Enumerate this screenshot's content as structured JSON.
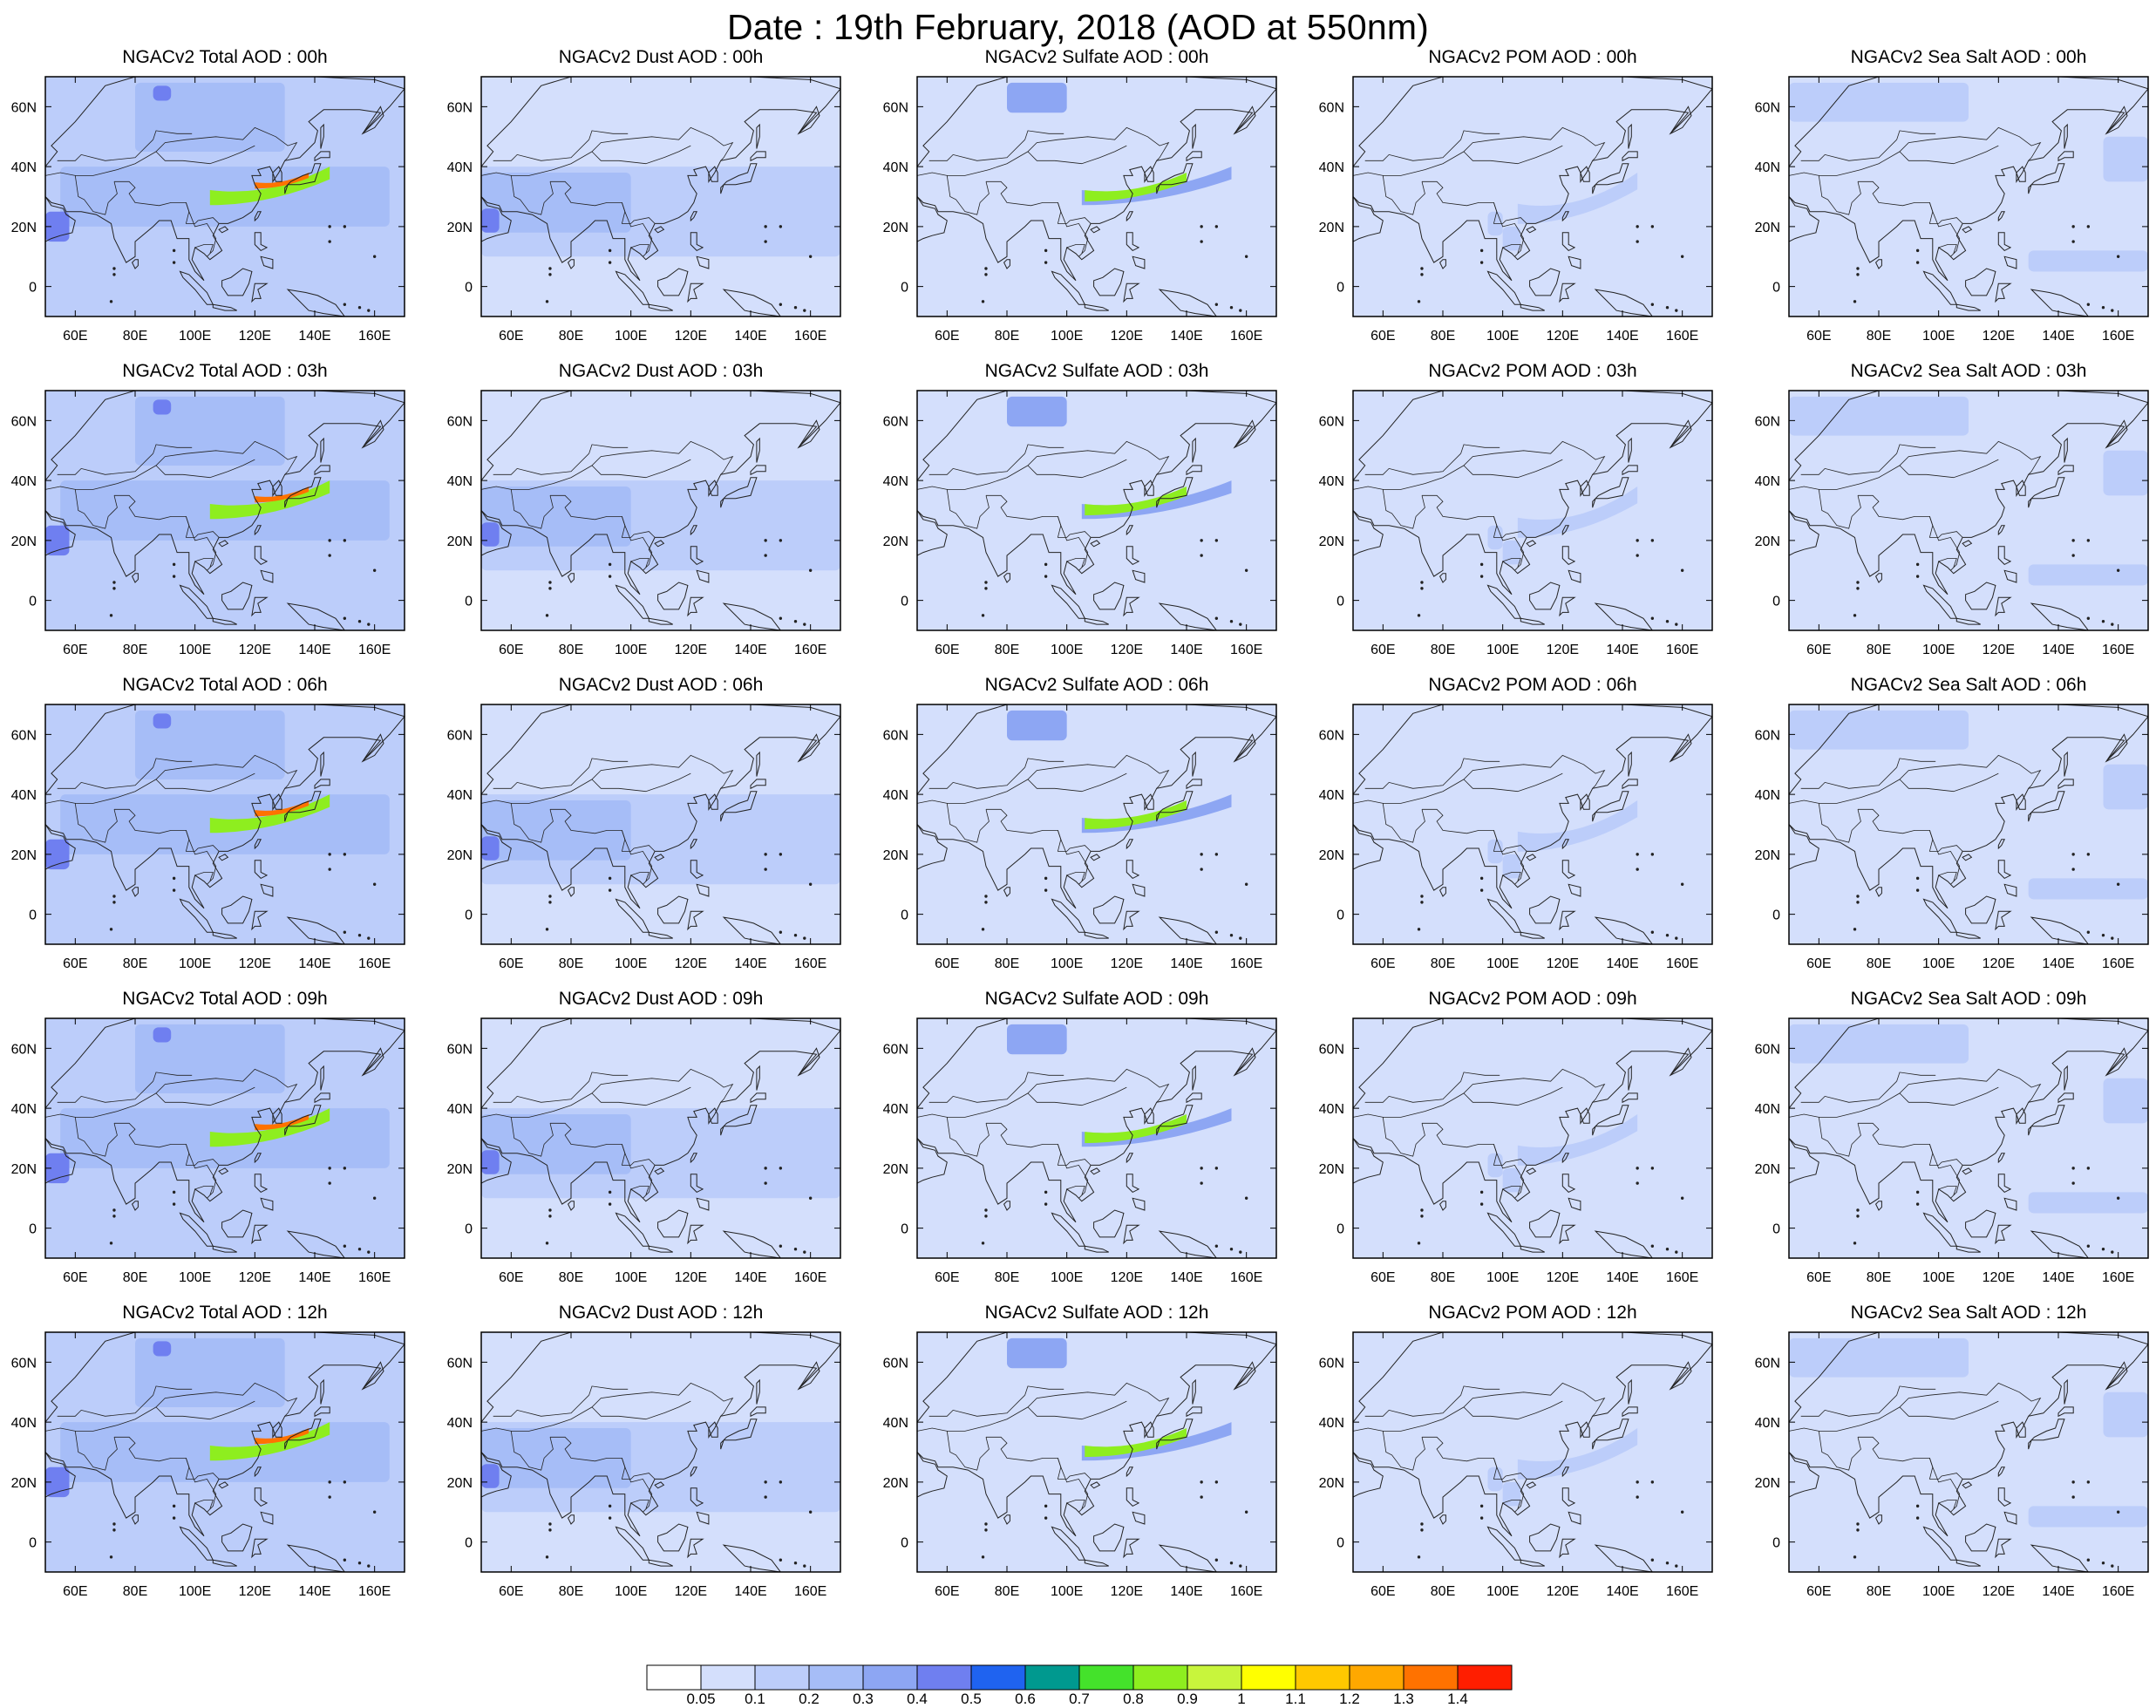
{
  "title": "Date : 19th February, 2018 (AOD at 550nm)",
  "row_hours": [
    "00h",
    "03h",
    "06h",
    "09h",
    "12h"
  ],
  "columns": [
    "total",
    "dust",
    "sulfate",
    "pom",
    "seasalt"
  ],
  "panel_titles": [
    [
      "NGACv2 Total AOD : 00h",
      "NGACv2 Dust AOD : 00h",
      "NGACv2 Sulfate AOD : 00h",
      "NGACv2 POM AOD : 00h",
      "NGACv2 Sea Salt AOD : 00h"
    ],
    [
      "NGACv2 Total AOD : 03h",
      "NGACv2 Dust AOD : 03h",
      "NGACv2 Sulfate AOD : 03h",
      "NGACv2 POM AOD : 03h",
      "NGACv2 Sea Salt AOD : 03h"
    ],
    [
      "NGACv2 Total AOD : 06h",
      "NGACv2 Dust AOD : 06h",
      "NGACv2 Sulfate AOD : 06h",
      "NGACv2 POM AOD : 06h",
      "NGACv2 Sea Salt AOD : 06h"
    ],
    [
      "NGACv2 Total AOD : 09h",
      "NGACv2 Dust AOD : 09h",
      "NGACv2 Sulfate AOD : 09h",
      "NGACv2 POM AOD : 09h",
      "NGACv2 Sea Salt  AOD : 09h"
    ],
    [
      "NGACv2 Total AOD  : 12h",
      "NGACv2 Dust AOD : 12h",
      "NGACv2 Sulfate AOD : 12h",
      "NGACv2 POM  AOD : 12h",
      "NGACv2 Sea Salt  AOD : 12h"
    ]
  ],
  "map_extent": {
    "lon_min": 50,
    "lon_max": 170,
    "lat_min": -10,
    "lat_max": 70
  },
  "lon_ticks": [
    {
      "lon": 60,
      "label": "60E"
    },
    {
      "lon": 80,
      "label": "80E"
    },
    {
      "lon": 100,
      "label": "100E"
    },
    {
      "lon": 120,
      "label": "120E"
    },
    {
      "lon": 140,
      "label": "140E"
    },
    {
      "lon": 160,
      "label": "160E"
    }
  ],
  "lat_ticks": [
    {
      "lat": 0,
      "label": "0"
    },
    {
      "lat": 20,
      "label": "20N"
    },
    {
      "lat": 40,
      "label": "40N"
    },
    {
      "lat": 60,
      "label": "60N"
    }
  ],
  "colorbar": {
    "colors": [
      "#ffffff",
      "#d4dffc",
      "#bccdfa",
      "#a6bdf7",
      "#8da6f3",
      "#6f7ff0",
      "#1f63f0",
      "#00998f",
      "#44e22b",
      "#8eee1f",
      "#c8f53c",
      "#ffff00",
      "#ffc800",
      "#ffa800",
      "#ff7200",
      "#ff1e00"
    ],
    "labels": [
      "0.05",
      "0.1",
      "0.2",
      "0.3",
      "0.4",
      "0.5",
      "0.6",
      "0.7",
      "0.8",
      "0.9",
      "1",
      "1.1",
      "1.2",
      "1.3",
      "1.4"
    ]
  },
  "chart_data": {
    "type": "heatmap",
    "date": "19th February, 2018",
    "wavelength": "550nm",
    "variables": [
      "Total AOD",
      "Dust AOD",
      "Sulfate AOD",
      "POM AOD",
      "Sea Salt AOD"
    ],
    "hours": [
      "00h",
      "03h",
      "06h",
      "09h",
      "12h"
    ],
    "x_range": [
      50,
      170
    ],
    "y_range": [
      -10,
      70
    ],
    "value_levels": [
      0.05,
      0.1,
      0.2,
      0.3,
      0.4,
      0.5,
      0.6,
      0.7,
      0.8,
      0.9,
      1,
      1.1,
      1.2,
      1.3,
      1.4
    ],
    "fields": {
      "total": {
        "base": 0.15,
        "features": [
          {
            "lon": [
              55,
              165
            ],
            "lat": [
              20,
              40
            ],
            "value": 0.2
          },
          {
            "lon": [
              80,
              130
            ],
            "lat": [
              45,
              68
            ],
            "value": 0.2
          },
          {
            "lon": [
              86,
              92
            ],
            "lat": [
              62,
              67
            ],
            "value": 0.4
          },
          {
            "lon": [
              50,
              58
            ],
            "lat": [
              15,
              25
            ],
            "value": 0.4
          },
          {
            "lon": [
              105,
              145
            ],
            "lat": [
              28,
              40
            ],
            "value": 0.8,
            "band": true
          },
          {
            "lon": [
              120,
              138
            ],
            "lat": [
              33,
              38
            ],
            "value": 1.3,
            "band": true
          }
        ]
      },
      "dust": {
        "base": 0.05,
        "features": [
          {
            "lon": [
              50,
              170
            ],
            "lat": [
              10,
              40
            ],
            "value": 0.15
          },
          {
            "lon": [
              50,
              100
            ],
            "lat": [
              18,
              38
            ],
            "value": 0.2
          },
          {
            "lon": [
              50,
              56
            ],
            "lat": [
              18,
              26
            ],
            "value": 0.4
          }
        ]
      },
      "sulfate": {
        "base": 0.05,
        "features": [
          {
            "lon": [
              80,
              100
            ],
            "lat": [
              58,
              68
            ],
            "value": 0.3
          },
          {
            "lon": [
              105,
              155
            ],
            "lat": [
              28,
              40
            ],
            "value": 0.3,
            "band": true
          },
          {
            "lon": [
              106,
              140
            ],
            "lat": [
              29,
              38
            ],
            "value": 0.8,
            "band": true
          }
        ]
      },
      "pom": {
        "base": 0.05,
        "features": [
          {
            "lon": [
              95,
              100
            ],
            "lat": [
              17,
              25
            ],
            "value": 0.15
          },
          {
            "lon": [
              100,
              106
            ],
            "lat": [
              12,
              20
            ],
            "value": 0.15
          },
          {
            "lon": [
              105,
              145
            ],
            "lat": [
              22,
              38
            ],
            "value": 0.1,
            "band": true
          }
        ]
      },
      "seasalt": {
        "base": 0.05,
        "features": [
          {
            "lon": [
              50,
              110
            ],
            "lat": [
              55,
              68
            ],
            "value": 0.1
          },
          {
            "lon": [
              155,
              170
            ],
            "lat": [
              35,
              50
            ],
            "value": 0.15
          },
          {
            "lon": [
              130,
              170
            ],
            "lat": [
              5,
              12
            ],
            "value": 0.1
          }
        ]
      }
    }
  }
}
